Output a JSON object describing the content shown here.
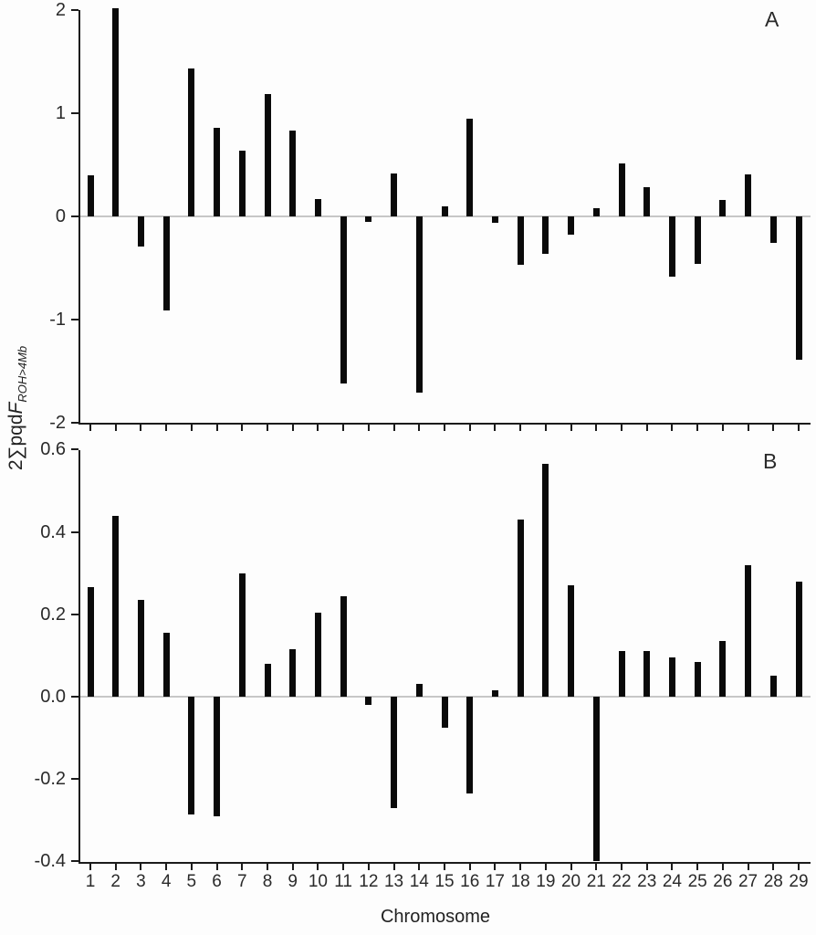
{
  "figure": {
    "y_axis_title": {
      "prefix": "2∑pqd",
      "f_symbol": "F",
      "subscript": "ROH>4Mb"
    },
    "x_axis_title": "Chromosome",
    "colors": {
      "bar": "#0a0a0a",
      "axis": "#1b1b1b",
      "zero_line": "#c7c7c7",
      "text": "#2a2a2a",
      "background": "#fdfdfd"
    }
  },
  "chart_data": [
    {
      "type": "bar",
      "panel_label": "A",
      "title": "",
      "xlabel": "Chromosome",
      "ylabel": "2∑pqdF_ROH>4Mb",
      "categories": [
        "1",
        "2",
        "3",
        "4",
        "5",
        "6",
        "7",
        "8",
        "9",
        "10",
        "11",
        "12",
        "13",
        "14",
        "15",
        "16",
        "17",
        "18",
        "19",
        "20",
        "21",
        "22",
        "23",
        "24",
        "25",
        "26",
        "27",
        "28",
        "29"
      ],
      "values": [
        0.4,
        2.02,
        -0.29,
        -0.91,
        1.43,
        0.86,
        0.64,
        1.19,
        0.83,
        0.17,
        -1.62,
        -0.05,
        0.42,
        -1.71,
        0.1,
        0.95,
        -0.06,
        -0.47,
        -0.36,
        -0.18,
        0.08,
        0.51,
        0.28,
        -0.58,
        -0.46,
        0.16,
        0.41,
        -0.26,
        -1.39
      ],
      "ylim": [
        -2,
        2
      ],
      "ytick_labels": [
        "2",
        "1",
        "0",
        "-1",
        "-2"
      ],
      "ytick_values": [
        2,
        1,
        0,
        -1,
        -2
      ],
      "show_x_tick_labels": false,
      "grid": false,
      "legend": "none"
    },
    {
      "type": "bar",
      "panel_label": "B",
      "title": "",
      "xlabel": "Chromosome",
      "ylabel": "2∑pqdF_ROH>4Mb",
      "categories": [
        "1",
        "2",
        "3",
        "4",
        "5",
        "6",
        "7",
        "8",
        "9",
        "10",
        "11",
        "12",
        "13",
        "14",
        "15",
        "16",
        "17",
        "18",
        "19",
        "20",
        "21",
        "22",
        "23",
        "24",
        "25",
        "26",
        "27",
        "28",
        "29"
      ],
      "values": [
        0.265,
        0.44,
        0.235,
        0.155,
        -0.285,
        -0.29,
        0.3,
        0.08,
        0.115,
        0.205,
        0.245,
        -0.02,
        -0.27,
        0.03,
        -0.075,
        -0.235,
        0.015,
        0.43,
        0.565,
        0.27,
        -0.4,
        0.11,
        0.11,
        0.095,
        0.085,
        0.135,
        0.32,
        0.05,
        0.28
      ],
      "ylim": [
        -0.4,
        0.6
      ],
      "ytick_labels": [
        "0.6",
        "0.4",
        "0.2",
        "0.0",
        "-0.2",
        "-0.4"
      ],
      "ytick_values": [
        0.6,
        0.4,
        0.2,
        0.0,
        -0.2,
        -0.4
      ],
      "show_x_tick_labels": true,
      "grid": false,
      "legend": "none"
    }
  ]
}
